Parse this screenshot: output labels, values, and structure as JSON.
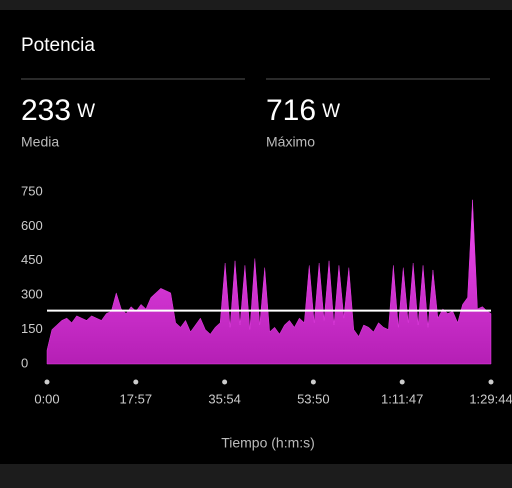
{
  "header": {
    "title": "Potencia"
  },
  "stats": [
    {
      "value": 233,
      "unit": "W",
      "label": "Media"
    },
    {
      "value": 716,
      "unit": "W",
      "label": "Máximo"
    }
  ],
  "chart_data": {
    "type": "area",
    "x_label": "Tiempo (h:m:s)",
    "color": "#e63ee6",
    "reference_color": "#ffffff",
    "x": [
      0,
      60,
      120,
      180,
      240,
      300,
      360,
      420,
      480,
      540,
      600,
      660,
      720,
      780,
      840,
      900,
      960,
      1020,
      1080,
      1140,
      1200,
      1260,
      1320,
      1380,
      1440,
      1500,
      1560,
      1620,
      1680,
      1740,
      1800,
      1860,
      1920,
      1980,
      2040,
      2100,
      2160,
      2220,
      2280,
      2340,
      2400,
      2460,
      2520,
      2580,
      2640,
      2700,
      2760,
      2820,
      2880,
      2940,
      3000,
      3060,
      3120,
      3180,
      3240,
      3300,
      3360,
      3420,
      3480,
      3540,
      3600,
      3660,
      3720,
      3780,
      3840,
      3900,
      3960,
      4020,
      4080,
      4140,
      4200,
      4260,
      4320,
      4380,
      4440,
      4500,
      4560,
      4620,
      4680,
      4740,
      4800,
      4860,
      4920,
      4980,
      5040,
      5100,
      5160,
      5220,
      5280,
      5340,
      5384
    ],
    "values": [
      60,
      150,
      170,
      190,
      200,
      180,
      210,
      200,
      190,
      210,
      200,
      190,
      220,
      230,
      310,
      240,
      220,
      250,
      230,
      260,
      240,
      290,
      310,
      330,
      320,
      310,
      180,
      160,
      190,
      140,
      170,
      200,
      150,
      130,
      160,
      180,
      440,
      160,
      450,
      170,
      430,
      150,
      460,
      170,
      420,
      140,
      160,
      130,
      170,
      190,
      160,
      200,
      180,
      430,
      180,
      440,
      190,
      450,
      170,
      430,
      200,
      420,
      150,
      120,
      170,
      160,
      140,
      180,
      160,
      150,
      430,
      160,
      420,
      180,
      440,
      170,
      430,
      160,
      410,
      200,
      240,
      220,
      230,
      180,
      260,
      290,
      716,
      240,
      250,
      230,
      220
    ],
    "xlim": [
      0,
      5384
    ],
    "xticks": [
      {
        "value": 0,
        "label": "0:00"
      },
      {
        "value": 1077,
        "label": "17:57"
      },
      {
        "value": 2154,
        "label": "35:54"
      },
      {
        "value": 3230,
        "label": "53:50"
      },
      {
        "value": 4307,
        "label": "1:11:47"
      },
      {
        "value": 5384,
        "label": "1:29:44"
      }
    ],
    "ylim": [
      0,
      750
    ],
    "yticks": [
      0,
      150,
      300,
      450,
      600,
      750
    ]
  }
}
